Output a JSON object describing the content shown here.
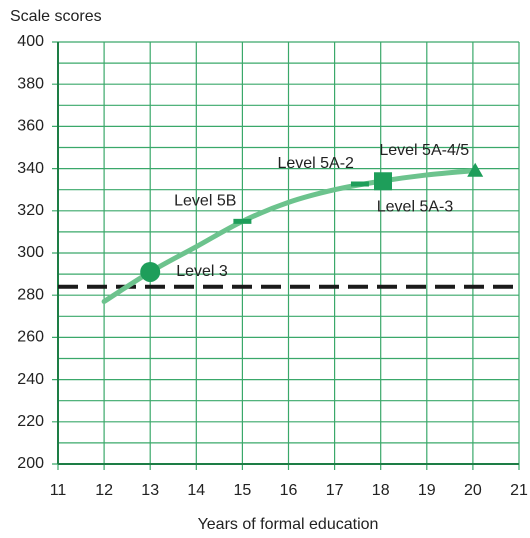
{
  "chart_data": {
    "type": "line",
    "title": "Scale scores",
    "x_label": "Years of formal education",
    "xlim": [
      11,
      21
    ],
    "xticks": [
      11,
      12,
      13,
      14,
      15,
      16,
      17,
      18,
      19,
      20,
      21
    ],
    "ylim": [
      200,
      400
    ],
    "yticks": [
      200,
      220,
      240,
      260,
      280,
      300,
      320,
      340,
      360,
      380,
      400
    ],
    "yminor_grid": [
      210,
      230,
      250,
      270,
      290,
      310,
      330,
      350,
      370,
      390
    ],
    "grid": true,
    "grid_color": "#3aa86a",
    "series": [
      {
        "color": "#6cc38d",
        "x": [
          12,
          13,
          14,
          15,
          16,
          17,
          18,
          19,
          20
        ],
        "values": [
          277,
          291,
          303,
          315,
          324,
          330,
          334,
          337,
          339
        ]
      }
    ],
    "reference_line": 284,
    "reference_color": "#1a1a1a",
    "marker_color": "#1e9e5a",
    "markers": [
      {
        "label": "Level 3",
        "x": 13,
        "y": 291,
        "shape": "circle",
        "label_pos": "right"
      },
      {
        "label": "Level 5B",
        "x": 15,
        "y": 315,
        "shape": "dash",
        "label_pos": "above-left"
      },
      {
        "label": "Level 5A-2",
        "x": 17.55,
        "y": 332.7,
        "shape": "dash",
        "label_pos": "above-left"
      },
      {
        "label": "Level 5A-3",
        "x": 18.05,
        "y": 334,
        "shape": "square",
        "label_pos": "below-right"
      },
      {
        "label": "Level 5A-4/5",
        "x": 20.05,
        "y": 339,
        "shape": "triangle",
        "label_pos": "above-left"
      }
    ]
  }
}
